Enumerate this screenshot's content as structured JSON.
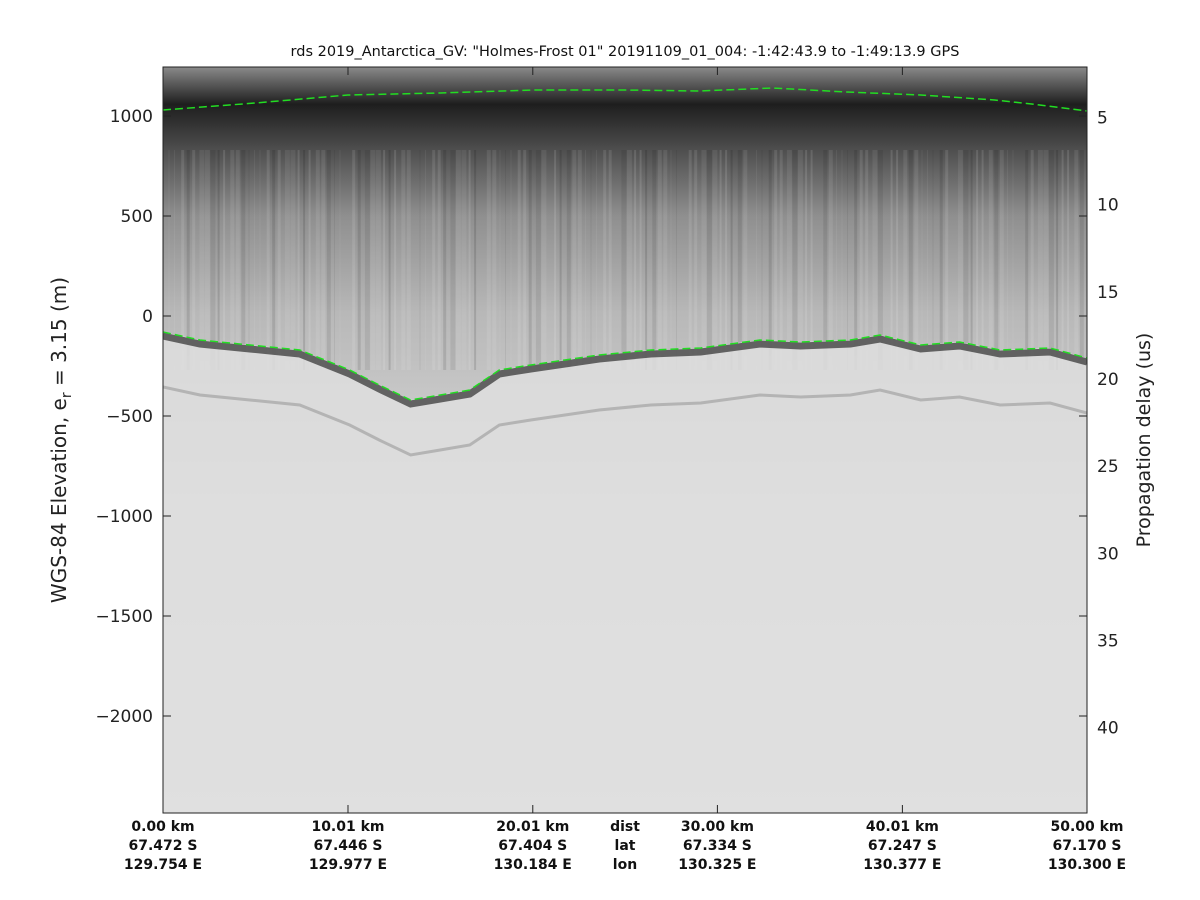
{
  "chart_data": {
    "type": "heatmap",
    "title": "rds 2019_Antarctica_GV: \"Holmes-Frost 01\"  20191109_01_004: -1:42:43.9 to -1:49:13.9 GPS",
    "ylabel_main": "WGS-84 Elevation, e",
    "ylabel_sub": "r",
    "ylabel_rest": " = 3.15 (m)",
    "y2label": "Propagation delay (us)",
    "xlim_km": [
      0,
      50
    ],
    "ylim": [
      -2485,
      1245
    ],
    "y2lim": [
      2.1,
      44.9
    ],
    "yticks": [
      1000,
      500,
      0,
      -500,
      -1000,
      -1500,
      -2000
    ],
    "ytick_labels": [
      "1000",
      "500",
      "0",
      "−500",
      "−1000",
      "−1500",
      "−2000"
    ],
    "y2ticks": [
      5,
      10,
      15,
      20,
      25,
      30,
      35,
      40
    ],
    "y2tick_labels": [
      "5",
      "10",
      "15",
      "20",
      "25",
      "30",
      "35",
      "40"
    ],
    "xticks_km": [
      0,
      10.01,
      20.01,
      30.0,
      40.01,
      50.0
    ],
    "xtick_dist": [
      "0.00 km",
      "10.01 km",
      "20.01 km",
      "30.00 km",
      "40.01 km",
      "50.00 km"
    ],
    "xtick_lat": [
      "67.472 S",
      "67.446 S",
      "67.404 S",
      "67.334 S",
      "67.247 S",
      "67.170 S"
    ],
    "xtick_lon": [
      "129.754 E",
      "129.977 E",
      "130.184 E",
      "130.325 E",
      "130.377 E",
      "130.300 E"
    ],
    "row_labels": [
      "dist",
      "lat",
      "lon"
    ],
    "series": [
      {
        "name": "surface",
        "color": "#22dd22",
        "x": [
          0,
          5,
          10,
          15,
          20,
          25,
          29,
          33,
          37,
          41,
          45,
          47,
          50
        ],
        "y": [
          1030,
          1065,
          1105,
          1115,
          1130,
          1130,
          1125,
          1140,
          1120,
          1105,
          1080,
          1060,
          1025
        ]
      },
      {
        "name": "bed",
        "color": "#22dd22",
        "x": [
          0,
          2.0,
          4.7,
          7.4,
          10.1,
          11.7,
          13.4,
          15.0,
          16.6,
          18.2,
          19.9,
          23.6,
          26.4,
          29.1,
          32.3,
          34.5,
          37.2,
          38.8,
          41.0,
          43.1,
          45.3,
          48.0,
          50
        ],
        "y": [
          -80,
          -120,
          -145,
          -170,
          -270,
          -345,
          -420,
          -395,
          -370,
          -270,
          -245,
          -195,
          -170,
          -160,
          -120,
          -130,
          -120,
          -95,
          -145,
          -130,
          -170,
          -160,
          -210
        ]
      }
    ]
  }
}
